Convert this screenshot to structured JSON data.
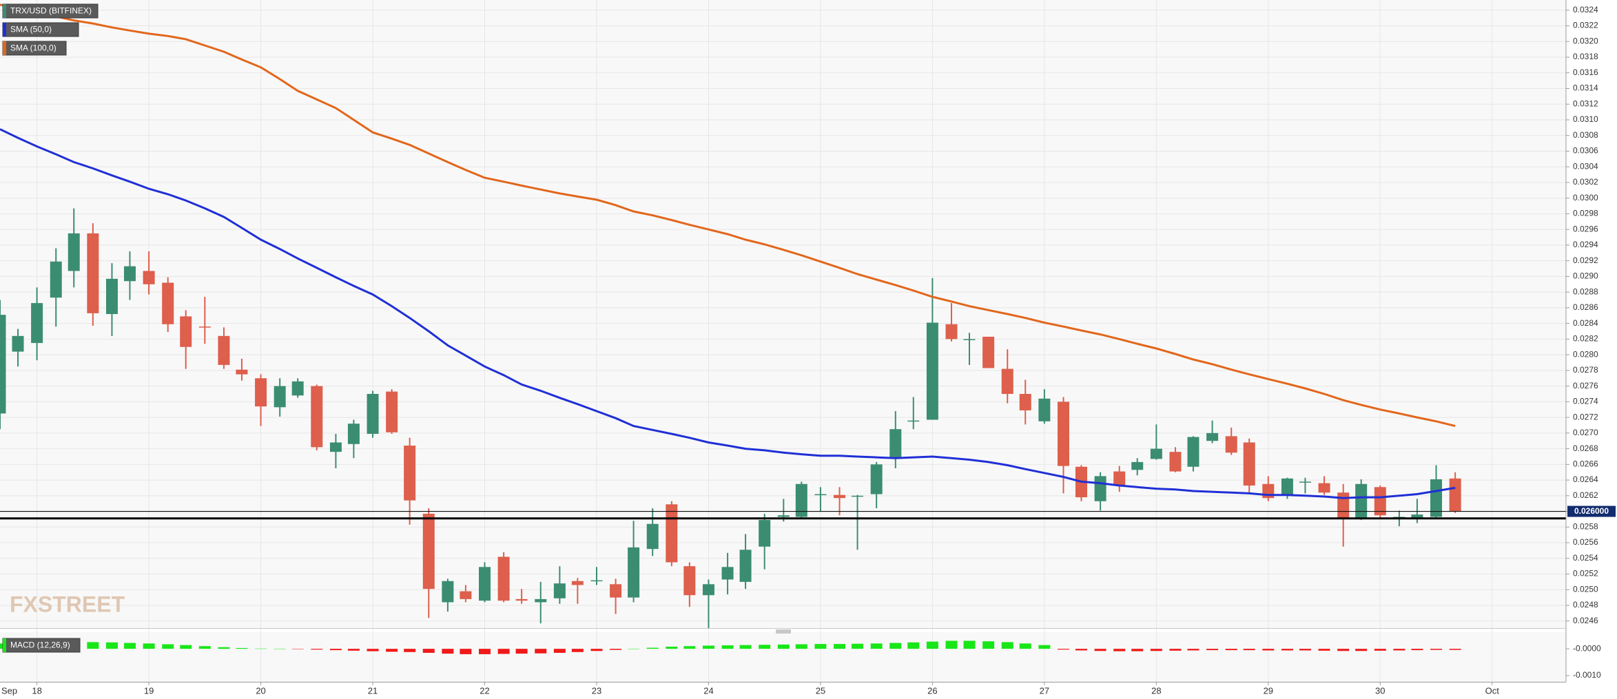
{
  "chart_data": {
    "type": "candlestick",
    "title": "TRX/USD (BITFINEX)",
    "watermark": "FXSTREET",
    "up_color": "#3b8d72",
    "down_color": "#dd5f4c",
    "x": [
      17.67,
      17.83,
      18,
      18.17,
      18.33,
      18.5,
      18.67,
      18.83,
      19,
      19.17,
      19.33,
      19.5,
      19.67,
      19.83,
      20,
      20.17,
      20.33,
      20.5,
      20.67,
      20.83,
      21,
      21.17,
      21.33,
      21.5,
      21.67,
      21.83,
      22,
      22.17,
      22.33,
      22.5,
      22.67,
      22.83,
      23,
      23.17,
      23.33,
      23.5,
      23.67,
      23.83,
      24,
      24.17,
      24.33,
      24.5,
      24.67,
      24.83,
      25,
      25.17,
      25.33,
      25.5,
      25.67,
      25.83,
      26,
      26.17,
      26.33,
      26.5,
      26.67,
      26.83,
      27,
      27.17,
      27.33,
      27.5,
      27.67,
      27.83,
      28,
      28.17,
      28.33,
      28.5,
      28.67,
      28.83,
      29,
      29.17,
      29.33,
      29.5,
      29.67,
      29.83,
      30,
      30.17,
      30.33,
      30.5,
      30.67
    ],
    "open": [
      0.02725,
      0.02804,
      0.02815,
      0.02873,
      0.02907,
      0.02955,
      0.02852,
      0.02894,
      0.02907,
      0.02892,
      0.02849,
      0.02836,
      0.02824,
      0.02781,
      0.0277,
      0.02733,
      0.02748,
      0.0276,
      0.02676,
      0.02686,
      0.02699,
      0.02753,
      0.02684,
      0.02597,
      0.02484,
      0.02498,
      0.02486,
      0.02542,
      0.02488,
      0.02484,
      0.02489,
      0.02511,
      0.02511,
      0.02507,
      0.0249,
      0.02552,
      0.02609,
      0.0253,
      0.02493,
      0.02513,
      0.0251,
      0.02555,
      0.02593,
      0.02593,
      0.02621,
      0.02621,
      0.0262,
      0.02622,
      0.02668,
      0.02716,
      0.02717,
      0.02839,
      0.0282,
      0.02823,
      0.02782,
      0.0275,
      0.02715,
      0.0274,
      0.02657,
      0.02613,
      0.02651,
      0.02653,
      0.02667,
      0.02676,
      0.02657,
      0.0269,
      0.02696,
      0.02688,
      0.02635,
      0.0262,
      0.02638,
      0.02636,
      0.02624,
      0.02591,
      0.02631,
      0.02593,
      0.02591,
      0.02593,
      0.02642
    ],
    "high": [
      0.0287,
      0.02833,
      0.02886,
      0.02936,
      0.02987,
      0.02968,
      0.02917,
      0.02932,
      0.02932,
      0.02899,
      0.02857,
      0.02874,
      0.02835,
      0.02795,
      0.02775,
      0.0277,
      0.0277,
      0.02762,
      0.02699,
      0.02717,
      0.02754,
      0.02756,
      0.02694,
      0.02604,
      0.02514,
      0.02506,
      0.02535,
      0.02548,
      0.02501,
      0.0251,
      0.0253,
      0.02515,
      0.02529,
      0.02514,
      0.02588,
      0.02604,
      0.02613,
      0.02535,
      0.02513,
      0.02547,
      0.02571,
      0.02597,
      0.02616,
      0.02638,
      0.02631,
      0.02631,
      0.02621,
      0.02663,
      0.02728,
      0.02746,
      0.02898,
      0.02866,
      0.02828,
      0.02823,
      0.02807,
      0.02768,
      0.02756,
      0.02746,
      0.02659,
      0.0265,
      0.02658,
      0.02668,
      0.02711,
      0.02682,
      0.02696,
      0.02716,
      0.02707,
      0.02693,
      0.02645,
      0.02643,
      0.02643,
      0.02645,
      0.02635,
      0.02641,
      0.02633,
      0.02601,
      0.02616,
      0.02659,
      0.0265
    ],
    "low": [
      0.02705,
      0.02785,
      0.02793,
      0.02836,
      0.02886,
      0.02837,
      0.02824,
      0.0287,
      0.02877,
      0.02829,
      0.02782,
      0.02814,
      0.02782,
      0.02767,
      0.02709,
      0.02721,
      0.02745,
      0.02678,
      0.02655,
      0.02668,
      0.02694,
      0.02699,
      0.02583,
      0.02464,
      0.02472,
      0.02484,
      0.02484,
      0.02484,
      0.02482,
      0.02457,
      0.02482,
      0.02482,
      0.02506,
      0.02469,
      0.02484,
      0.02543,
      0.0253,
      0.02478,
      0.02448,
      0.02494,
      0.02501,
      0.02526,
      0.02587,
      0.02591,
      0.026,
      0.02595,
      0.02551,
      0.02604,
      0.02655,
      0.02705,
      0.02717,
      0.02817,
      0.02787,
      0.02783,
      0.02738,
      0.02711,
      0.02712,
      0.02623,
      0.02613,
      0.02601,
      0.02625,
      0.02646,
      0.02666,
      0.0265,
      0.02651,
      0.02687,
      0.02672,
      0.02623,
      0.02613,
      0.02616,
      0.02623,
      0.02621,
      0.02555,
      0.02589,
      0.02591,
      0.02581,
      0.02585,
      0.02591,
      0.02598
    ],
    "close": [
      0.02851,
      0.02824,
      0.02866,
      0.02919,
      0.02955,
      0.02853,
      0.02897,
      0.02913,
      0.0289,
      0.02839,
      0.0281,
      0.02835,
      0.02787,
      0.02775,
      0.02734,
      0.0276,
      0.02766,
      0.02682,
      0.02688,
      0.02712,
      0.0275,
      0.02701,
      0.02614,
      0.02501,
      0.02511,
      0.02488,
      0.02529,
      0.02486,
      0.02486,
      0.02488,
      0.02508,
      0.02506,
      0.02512,
      0.0249,
      0.02554,
      0.02584,
      0.02535,
      0.02493,
      0.02507,
      0.02529,
      0.02551,
      0.02589,
      0.02595,
      0.02635,
      0.02622,
      0.02617,
      0.0262,
      0.0266,
      0.02705,
      0.02716,
      0.02841,
      0.0282,
      0.0282,
      0.02783,
      0.0275,
      0.02729,
      0.02744,
      0.02658,
      0.02618,
      0.02645,
      0.02633,
      0.02663,
      0.0268,
      0.02651,
      0.02695,
      0.027,
      0.02675,
      0.02633,
      0.02617,
      0.02642,
      0.02638,
      0.02624,
      0.02591,
      0.02635,
      0.02595,
      0.02593,
      0.02596,
      0.02641,
      0.026
    ],
    "series": [
      {
        "name": "SMA (50,0)",
        "color": "#1f2fd6",
        "values": [
          0.03088,
          0.03077,
          0.03066,
          0.03056,
          0.03046,
          0.03038,
          0.03029,
          0.03021,
          0.03012,
          0.03005,
          0.02997,
          0.02987,
          0.02976,
          0.02962,
          0.02947,
          0.02935,
          0.02923,
          0.02911,
          0.02899,
          0.02888,
          0.02877,
          0.02862,
          0.02847,
          0.0283,
          0.02812,
          0.02799,
          0.02785,
          0.02774,
          0.02762,
          0.02754,
          0.02745,
          0.02737,
          0.02728,
          0.02719,
          0.02709,
          0.02704,
          0.02699,
          0.02694,
          0.02688,
          0.02684,
          0.0268,
          0.02678,
          0.02675,
          0.02673,
          0.02671,
          0.02671,
          0.0267,
          0.02669,
          0.02668,
          0.02669,
          0.0267,
          0.02668,
          0.02666,
          0.02663,
          0.02659,
          0.02654,
          0.02649,
          0.02644,
          0.02638,
          0.02636,
          0.02633,
          0.02631,
          0.02629,
          0.02628,
          0.02626,
          0.02625,
          0.02624,
          0.02623,
          0.02621,
          0.02621,
          0.0262,
          0.02619,
          0.02617,
          0.02618,
          0.02618,
          0.0262,
          0.02622,
          0.02626,
          0.0263
        ]
      },
      {
        "name": "SMA (100,0)",
        "color": "#e2661b",
        "values": [
          0.03247,
          0.03242,
          0.03237,
          0.03232,
          0.03227,
          0.03223,
          0.03218,
          0.03214,
          0.0321,
          0.03207,
          0.03203,
          0.03195,
          0.03187,
          0.03177,
          0.03167,
          0.03152,
          0.03137,
          0.03126,
          0.03115,
          0.031,
          0.03084,
          0.03076,
          0.03068,
          0.03057,
          0.03046,
          0.03036,
          0.03026,
          0.03021,
          0.03016,
          0.03011,
          0.03006,
          0.03002,
          0.02998,
          0.02991,
          0.02983,
          0.02978,
          0.02972,
          0.02966,
          0.0296,
          0.02954,
          0.02947,
          0.02941,
          0.02934,
          0.02927,
          0.02919,
          0.02911,
          0.02903,
          0.02896,
          0.02889,
          0.02882,
          0.02874,
          0.02868,
          0.02862,
          0.02857,
          0.02852,
          0.02847,
          0.02841,
          0.02836,
          0.02831,
          0.02826,
          0.0282,
          0.02814,
          0.02808,
          0.02801,
          0.02794,
          0.02788,
          0.02781,
          0.02775,
          0.02769,
          0.02763,
          0.02757,
          0.0275,
          0.02742,
          0.02736,
          0.0273,
          0.02725,
          0.0272,
          0.02715,
          0.02709
        ]
      }
    ],
    "xlim": [
      17.67,
      31.66
    ],
    "xticks": [
      {
        "value": 17,
        "label": "Sep"
      },
      18,
      19,
      20,
      21,
      22,
      23,
      24,
      25,
      26,
      27,
      28,
      29,
      30,
      {
        "value": 31,
        "label": "Oct"
      }
    ],
    "ylim": [
      0.02451,
      0.03253
    ],
    "yticks": [
      0.0246,
      0.0248,
      {
        "value": 0.025,
        "label": "0.0250"
      },
      0.0252,
      0.0254,
      0.0256,
      0.0258,
      {
        "value": 0.026,
        "label": "0.0260"
      },
      0.0262,
      0.0264,
      0.0266,
      0.0268,
      {
        "value": 0.027,
        "label": "0.0270"
      },
      0.0272,
      0.0274,
      0.0276,
      0.0278,
      {
        "value": 0.028,
        "label": "0.0280"
      },
      0.0282,
      0.0284,
      0.0286,
      0.0288,
      {
        "value": 0.029,
        "label": "0.0290"
      },
      0.0292,
      0.0294,
      0.0296,
      0.0298,
      {
        "value": 0.03,
        "label": "0.0300"
      },
      0.0302,
      0.0304,
      0.0306,
      0.0308,
      {
        "value": 0.031,
        "label": "0.0310"
      },
      0.0312,
      0.0314,
      0.0316,
      0.0318,
      {
        "value": 0.032,
        "label": "0.0320"
      },
      0.0322,
      0.0324
    ],
    "grid": true,
    "price_line": {
      "value": 0.026,
      "label": "0.026000",
      "color": "#132c6e"
    },
    "support_line": 0.02591,
    "macd": {
      "name": "MACD (12,26,9)",
      "up_color": "#19e619",
      "down_color": "#f01a1a",
      "values": [
        0.0002,
        0.00022,
        0.00024,
        0.00025,
        0.00026,
        0.00025,
        0.00024,
        0.00022,
        0.0002,
        0.00017,
        0.00014,
        0.0001,
        6e-05,
        3e-05,
        1e-05,
        0,
        -1e-05,
        -3e-05,
        -5e-05,
        -7e-05,
        -9e-05,
        -0.00011,
        -0.00012,
        -0.00015,
        -0.00018,
        -0.0002,
        -0.0002,
        -0.00019,
        -0.00018,
        -0.00017,
        -0.00015,
        -0.00012,
        -8e-05,
        -4e-05,
        0,
        4e-05,
        8e-05,
        0.0001,
        0.00012,
        0.00013,
        0.00014,
        0.00015,
        0.00016,
        0.00017,
        0.00018,
        0.00018,
        0.00019,
        0.0002,
        0.00022,
        0.00024,
        0.00027,
        0.0003,
        0.0003,
        0.00028,
        0.00025,
        0.0002,
        0.00014,
        -3e-05,
        -6e-05,
        -8e-05,
        -9e-05,
        -9e-05,
        -8e-05,
        -7e-05,
        -6e-05,
        -5e-05,
        -5e-05,
        -5e-05,
        -6e-05,
        -6e-05,
        -6e-05,
        -7e-05,
        -8e-05,
        -8e-05,
        -7e-05,
        -6e-05,
        -5e-05,
        -4e-05,
        -4e-05
      ],
      "ylim": [
        -0.00123,
        0.00062
      ],
      "yticks": [
        {
          "value": 0,
          "label": "-0.0000"
        },
        {
          "value": -0.001,
          "label": "-0.0010"
        }
      ]
    }
  }
}
